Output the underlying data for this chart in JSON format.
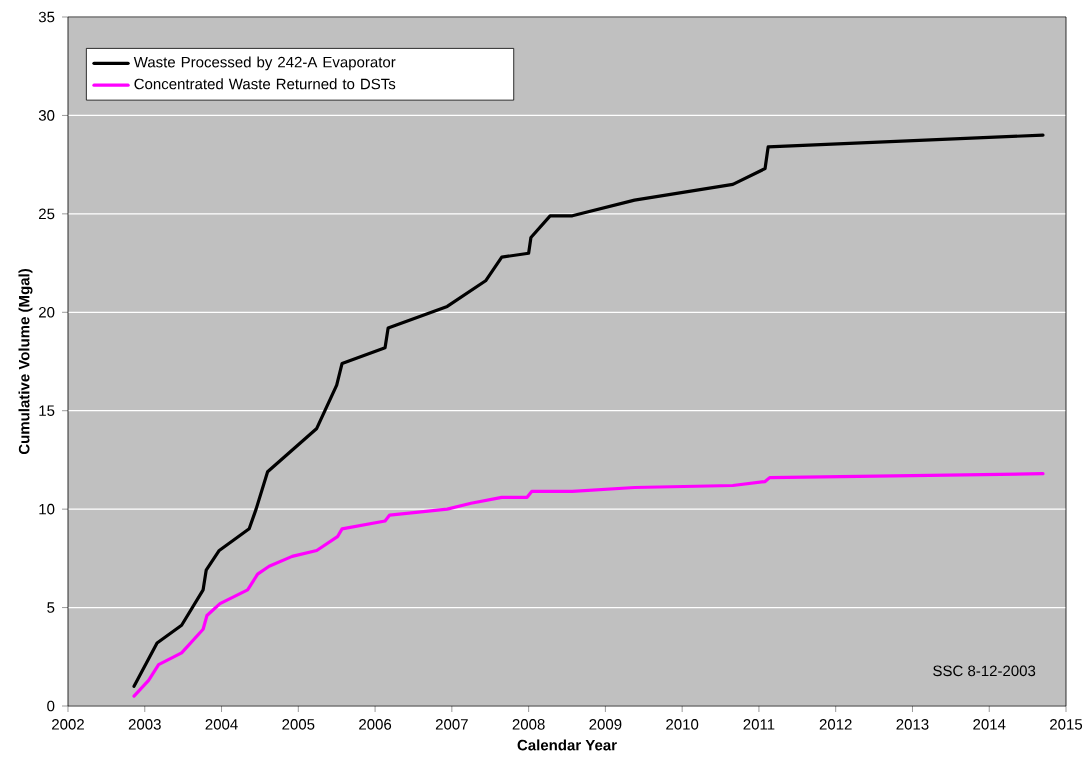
{
  "chart_data": {
    "type": "line",
    "xlabel": "Calendar Year",
    "ylabel": "Cumulative Volume (Mgal)",
    "xlim": [
      2002,
      2015
    ],
    "xticks": [
      2002,
      2003,
      2004,
      2005,
      2006,
      2007,
      2008,
      2009,
      2010,
      2011,
      2012,
      2013,
      2014,
      2015
    ],
    "ylim": [
      0,
      35
    ],
    "yticks": [
      0,
      5,
      10,
      15,
      20,
      25,
      30,
      35
    ],
    "grid": "y",
    "legend": "top left",
    "marker": "none",
    "line_style": "solid",
    "annotations": [
      "SSC 8-12-2003"
    ],
    "series": [
      {
        "name": "Waste Processed by 242-A Evaporator",
        "color": "#000000",
        "x": [
          2002.86,
          2003.16,
          2003.48,
          2003.76,
          2003.8,
          2003.97,
          2004.36,
          2004.45,
          2004.6,
          2005.24,
          2005.5,
          2005.57,
          2006.13,
          2006.17,
          2006.94,
          2007.44,
          2007.65,
          2008.0,
          2008.03,
          2008.28,
          2008.57,
          2009.38,
          2010.66,
          2011.08,
          2011.12,
          2014.7
        ],
        "values": [
          1.0,
          3.2,
          4.1,
          5.9,
          6.9,
          7.9,
          9.0,
          10.0,
          11.9,
          14.1,
          16.3,
          17.4,
          18.2,
          19.2,
          20.3,
          21.6,
          22.8,
          23.0,
          23.8,
          24.9,
          24.9,
          25.7,
          26.5,
          27.3,
          28.4,
          29.0
        ]
      },
      {
        "name": "Concentrated Waste Returned to DSTs",
        "color": "#ff00ff",
        "x": [
          2002.86,
          2003.05,
          2003.18,
          2003.48,
          2003.76,
          2003.81,
          2003.98,
          2004.34,
          2004.47,
          2004.62,
          2004.92,
          2005.24,
          2005.51,
          2005.57,
          2006.13,
          2006.19,
          2006.94,
          2007.25,
          2007.65,
          2007.98,
          2008.04,
          2008.57,
          2009.38,
          2010.66,
          2011.08,
          2011.14,
          2014.7
        ],
        "values": [
          0.5,
          1.3,
          2.1,
          2.7,
          3.9,
          4.6,
          5.2,
          5.9,
          6.7,
          7.1,
          7.6,
          7.9,
          8.6,
          9.0,
          9.4,
          9.7,
          10.0,
          10.3,
          10.6,
          10.6,
          10.9,
          10.9,
          11.1,
          11.2,
          11.4,
          11.6,
          11.8
        ]
      }
    ]
  }
}
